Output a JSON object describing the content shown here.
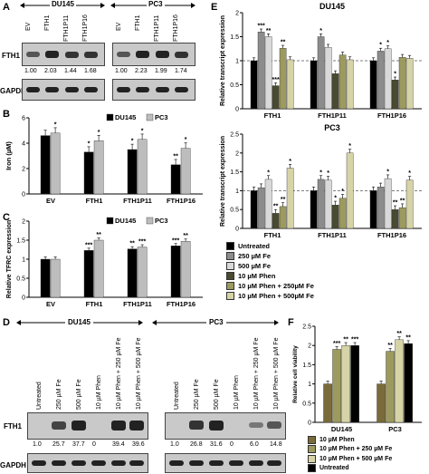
{
  "panels": {
    "A": "A",
    "B": "B",
    "C": "C",
    "D": "D",
    "E": "E",
    "F": "F"
  },
  "panelA": {
    "group1": "DU145",
    "group2": "PC3",
    "lanes1": [
      "EV",
      "FTH1",
      "FTH1P11",
      "FTH1P16"
    ],
    "lanes2": [
      "EV",
      "FTH1",
      "FTH1P11",
      "FTH1P16"
    ],
    "row1": "FTH1",
    "row2": "GAPDH",
    "quant1": [
      "1.00",
      "2.03",
      "1.44",
      "1.68"
    ],
    "quant2": [
      "1.00",
      "2.23",
      "1.99",
      "1.74"
    ]
  },
  "panelD": {
    "group1": "DU145",
    "group2": "PC3",
    "lanes": [
      "Untreated",
      "250 µM Fe",
      "500 µM Fe",
      "10 µM Phen",
      "10 µM Phen + 250 µM Fe",
      "10 µM Phen + 500 µM Fe"
    ],
    "row1": "FTH1",
    "row2": "GAPDH",
    "quant1": [
      "1.0",
      "25.7",
      "37.7",
      "0",
      "39.4",
      "39.6"
    ],
    "quant2": [
      "1.0",
      "26.8",
      "31.6",
      "0",
      "6.0",
      "14.8"
    ]
  },
  "chart_data": [
    {
      "id": "B",
      "type": "bar",
      "categories": [
        "EV",
        "FTH1",
        "FTH1P11",
        "FTH1P16"
      ],
      "ylabel": "Iron (µM)",
      "ylim": [
        0,
        6
      ],
      "yticks": [
        0,
        2,
        4,
        6
      ],
      "series": [
        {
          "name": "DU145",
          "color": "#000000",
          "values": [
            4.6,
            3.3,
            3.5,
            2.3
          ]
        },
        {
          "name": "PC3",
          "color": "#bdbdbd",
          "values": [
            4.8,
            4.2,
            4.3,
            3.6
          ]
        }
      ],
      "annotations": [
        "",
        "*",
        "*",
        "*",
        "*",
        "*",
        "**",
        "*"
      ]
    },
    {
      "id": "C",
      "type": "bar",
      "categories": [
        "EV",
        "FTH1",
        "FTH1P11",
        "FTH1P16"
      ],
      "ylabel": "Relative TFRC expression",
      "ylim": [
        0,
        2
      ],
      "yticks": [
        0,
        0.5,
        1,
        1.5,
        2
      ],
      "series": [
        {
          "name": "DU145",
          "color": "#000000",
          "values": [
            1.0,
            1.23,
            1.27,
            1.35
          ]
        },
        {
          "name": "PC3",
          "color": "#bdbdbd",
          "values": [
            1.0,
            1.5,
            1.32,
            1.47
          ]
        }
      ],
      "annotations": [
        "",
        "",
        "***",
        "**",
        "**",
        "***",
        "***",
        "**"
      ]
    },
    {
      "id": "E1",
      "type": "bar",
      "title": "DU145",
      "categories": [
        "FTH1",
        "FTH1P11",
        "FTH1P16"
      ],
      "ylabel": "Relative transcript expression",
      "ylim": [
        0,
        2
      ],
      "yticks": [
        0,
        0.5,
        1,
        1.5,
        2
      ],
      "series": [
        {
          "name": "Untreated",
          "color": "#000000",
          "values": [
            1.0,
            1.0,
            1.0
          ]
        },
        {
          "name": "250 µM Fe",
          "color": "#8c8c8c",
          "values": [
            1.6,
            1.5,
            1.2
          ]
        },
        {
          "name": "500 µM Fe",
          "color": "#d9d9d9",
          "values": [
            1.5,
            1.28,
            1.25
          ]
        },
        {
          "name": "10 µM Phen",
          "color": "#4a4a30",
          "values": [
            0.48,
            0.73,
            0.6
          ]
        },
        {
          "name": "10 µM Phen + 250µM Fe",
          "color": "#9c9a5e",
          "values": [
            1.26,
            1.12,
            1.07
          ]
        },
        {
          "name": "10 µM Phen + 500µM Fe",
          "color": "#d6d3a6",
          "values": [
            1.02,
            1.02,
            1.05
          ]
        }
      ],
      "annotations": [
        [
          "",
          "***",
          "**",
          "***",
          "**",
          ""
        ],
        [
          "",
          "*",
          "",
          "",
          "",
          ""
        ],
        [
          "",
          "*",
          "*",
          "*",
          "",
          ""
        ]
      ]
    },
    {
      "id": "E2",
      "type": "bar",
      "title": "PC3",
      "categories": [
        "FTH1",
        "FTH1P11",
        "FTH1P16"
      ],
      "ylabel": "Relative transcript expression",
      "ylim": [
        0,
        2.5
      ],
      "yticks": [
        0,
        0.5,
        1,
        1.5,
        2,
        2.5
      ],
      "series": [
        {
          "name": "Untreated",
          "color": "#000000",
          "values": [
            1.0,
            1.0,
            1.0
          ]
        },
        {
          "name": "250 µM Fe",
          "color": "#8c8c8c",
          "values": [
            1.08,
            1.3,
            1.1
          ]
        },
        {
          "name": "500 µM Fe",
          "color": "#d9d9d9",
          "values": [
            1.3,
            1.28,
            1.32
          ]
        },
        {
          "name": "10 µM Phen",
          "color": "#4a4a30",
          "values": [
            0.4,
            0.62,
            0.5
          ]
        },
        {
          "name": "10 µM Phen + 250µM Fe",
          "color": "#9c9a5e",
          "values": [
            0.58,
            0.8,
            0.55
          ]
        },
        {
          "name": "10 µM Phen + 500µM Fe",
          "color": "#d6d3a6",
          "values": [
            1.6,
            2.0,
            1.28
          ]
        }
      ],
      "annotations": [
        [
          "",
          "",
          "*",
          "**",
          "**",
          "*"
        ],
        [
          "",
          "*",
          "*",
          "*",
          "*",
          "*"
        ],
        [
          "",
          "",
          "*",
          "**",
          "**",
          "*"
        ]
      ]
    },
    {
      "id": "F",
      "type": "bar",
      "categories": [
        "DU145",
        "PC3"
      ],
      "ylabel": "Relative cell viability",
      "ylim": [
        0,
        2.5
      ],
      "yticks": [
        0,
        0.5,
        1,
        1.5,
        2,
        2.5
      ],
      "series": [
        {
          "name": "10 µM Phen",
          "color": "#7a6b3a",
          "values": [
            1.0,
            1.0
          ]
        },
        {
          "name": "10 µM Phen + 250 µM Fe",
          "color": "#9c9a5e",
          "values": [
            1.9,
            1.85
          ]
        },
        {
          "name": "10 µM Phen + 500 µM Fe",
          "color": "#d6d3a6",
          "values": [
            2.0,
            2.15
          ]
        },
        {
          "name": "Untreated",
          "color": "#000000",
          "values": [
            2.0,
            2.05
          ]
        }
      ],
      "annotations": [
        [
          "",
          "***",
          "**",
          "***"
        ],
        [
          "",
          "**",
          "**",
          "**"
        ]
      ]
    }
  ],
  "legendE": [
    "Untreated",
    "250 µM Fe",
    "500 µM Fe",
    "10 µM Phen",
    "10 µM Phen + 250µM Fe",
    "10 µM Phen + 500µM Fe"
  ],
  "legendF": [
    "10 µM Phen",
    "10 µM Phen + 250 µM Fe",
    "10 µM Phen + 500 µM Fe",
    "Untreated"
  ]
}
